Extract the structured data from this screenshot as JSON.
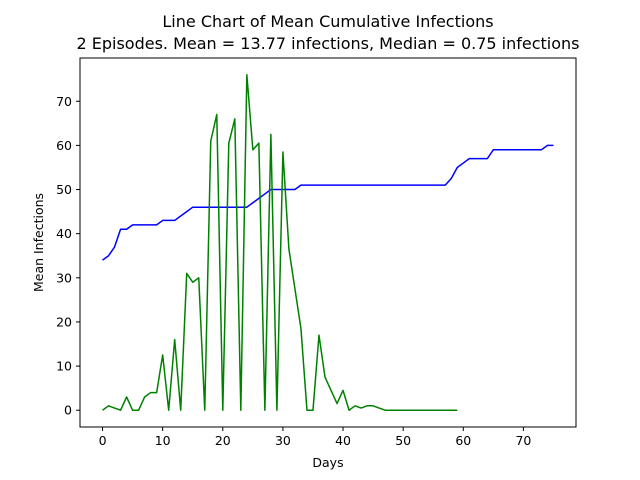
{
  "chart_data": {
    "type": "line",
    "title": "Line Chart of Mean Cumulative Infections",
    "subtitle": "2 Episodes. Mean = 13.77 infections, Median = 0.75 infections",
    "xlabel": "Days",
    "ylabel": "Mean Infections",
    "xlim": [
      -3.75,
      78.75
    ],
    "ylim": [
      -3.8,
      79.8
    ],
    "xticks": [
      0,
      10,
      20,
      30,
      40,
      50,
      60,
      70
    ],
    "yticks": [
      0,
      10,
      20,
      30,
      40,
      50,
      60,
      70
    ],
    "grid": false,
    "series": [
      {
        "color": "#0000ff",
        "x": [
          0,
          1,
          2,
          3,
          4,
          5,
          6,
          7,
          8,
          9,
          10,
          11,
          12,
          13,
          14,
          15,
          16,
          17,
          18,
          19,
          20,
          21,
          22,
          23,
          24,
          25,
          26,
          27,
          28,
          29,
          30,
          31,
          32,
          33,
          34,
          35,
          36,
          37,
          38,
          39,
          40,
          41,
          42,
          43,
          44,
          45,
          46,
          47,
          48,
          49,
          50,
          51,
          52,
          53,
          54,
          55,
          56,
          57,
          58,
          59,
          60,
          61,
          62,
          63,
          64,
          65,
          66,
          67,
          68,
          69,
          70,
          71,
          72,
          73,
          74,
          75
        ],
        "y": [
          34,
          35,
          37,
          41,
          41,
          42,
          42,
          42,
          42,
          42,
          43,
          43,
          43,
          44,
          45,
          46,
          46,
          46,
          46,
          46,
          46,
          46,
          46,
          46,
          46,
          47,
          48,
          49,
          50,
          50,
          50,
          50,
          50,
          51,
          51,
          51,
          51,
          51,
          51,
          51,
          51,
          51,
          51,
          51,
          51,
          51,
          51,
          51,
          51,
          51,
          51,
          51,
          51,
          51,
          51,
          51,
          51,
          51,
          52.5,
          55,
          56,
          57,
          57,
          57,
          57,
          59,
          59,
          59,
          59,
          59,
          59,
          59,
          59,
          59,
          60,
          60
        ]
      },
      {
        "color": "#008000",
        "x": [
          0,
          1,
          2,
          3,
          4,
          5,
          6,
          7,
          8,
          9,
          10,
          11,
          12,
          13,
          14,
          15,
          16,
          17,
          18,
          19,
          20,
          21,
          22,
          23,
          24,
          25,
          26,
          27,
          28,
          29,
          30,
          31,
          32,
          33,
          34,
          35,
          36,
          37,
          38,
          39,
          40,
          41,
          42,
          43,
          44,
          45,
          46,
          47,
          48,
          49,
          50,
          51,
          52,
          53,
          54,
          55,
          56,
          57,
          58,
          59
        ],
        "y": [
          0,
          1,
          0.5,
          0,
          3,
          0,
          0,
          3,
          4,
          4,
          12.5,
          0,
          16,
          0,
          31,
          29,
          30,
          0,
          61,
          67,
          0,
          60.5,
          66,
          0,
          76,
          59,
          60.5,
          0,
          62.5,
          0,
          58.5,
          36.5,
          27.5,
          18.5,
          0,
          0,
          17,
          7.5,
          4.5,
          1.5,
          4.5,
          0,
          1,
          0.5,
          1,
          1,
          0.5,
          0,
          0,
          0,
          0,
          0,
          0,
          0,
          0,
          0,
          0,
          0,
          0,
          0
        ]
      }
    ]
  }
}
